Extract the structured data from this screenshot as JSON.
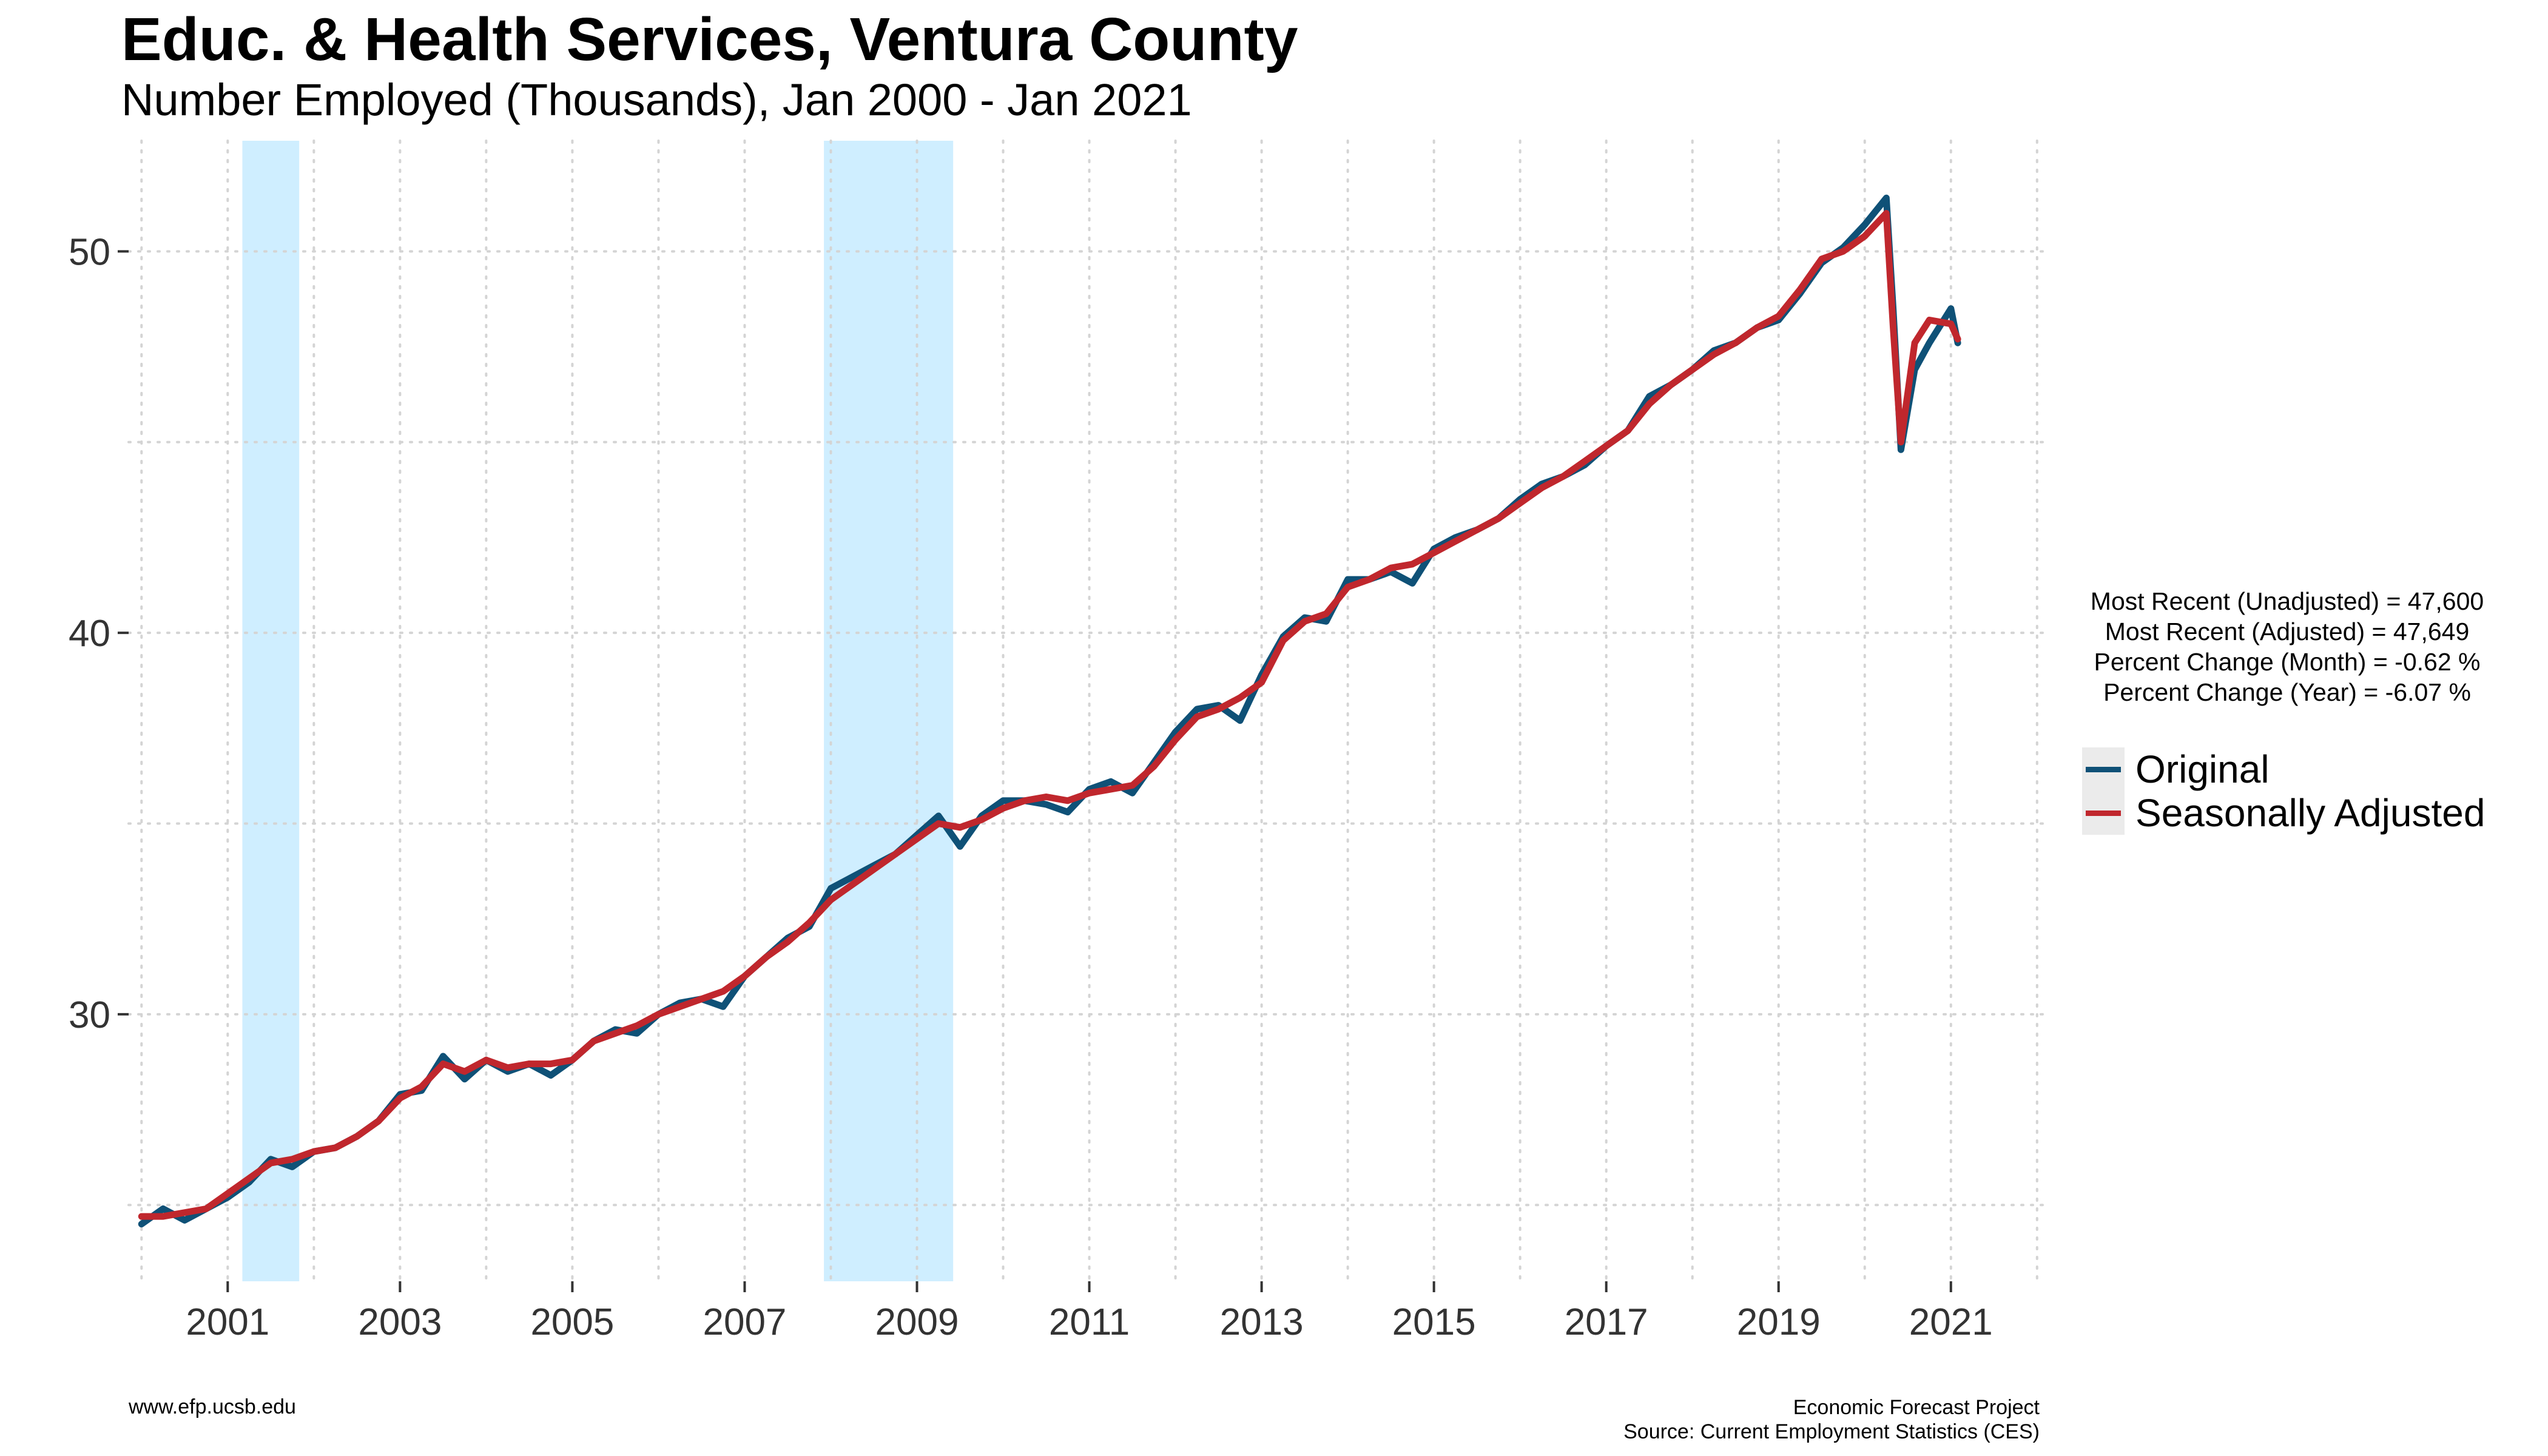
{
  "header": {
    "title": "Educ. & Health Services, Ventura County",
    "subtitle": "Number Employed (Thousands), Jan 2000 - Jan 2021"
  },
  "stats": {
    "unadjusted": "Most Recent (Unadjusted) = 47,600",
    "adjusted": "Most Recent (Adjusted) = 47,649",
    "month_change": "Percent Change (Month) = -0.62 %",
    "year_change": "Percent Change (Year) = -6.07 %"
  },
  "legend": {
    "original": "Original",
    "adjusted": "Seasonally Adjusted"
  },
  "footer": {
    "left": "www.efp.ucsb.edu",
    "right_line1": "Economic Forecast Project",
    "right_line2": "Source: Current Employment Statistics (CES)"
  },
  "chart_data": {
    "type": "line",
    "x_ticks": [
      2001,
      2003,
      2005,
      2007,
      2009,
      2011,
      2013,
      2015,
      2017,
      2019,
      2021
    ],
    "y_ticks": [
      30,
      40,
      50
    ],
    "xlim": [
      1999.85,
      2022.1
    ],
    "ylim": [
      23.0,
      52.9
    ],
    "grid": true,
    "legend_position": "right",
    "recessions": [
      [
        2001.17,
        2001.83
      ],
      [
        2007.92,
        2009.42
      ]
    ],
    "colors": {
      "original": "#0f5177",
      "adjusted": "#c0272d",
      "recession": "#cfeeff",
      "legend_key_bg": "#ebebeb"
    },
    "series": [
      {
        "name": "Original",
        "points": [
          [
            2000.0,
            24.5
          ],
          [
            2000.25,
            24.9
          ],
          [
            2000.5,
            24.6
          ],
          [
            2000.75,
            24.9
          ],
          [
            2001.0,
            25.2
          ],
          [
            2001.25,
            25.6
          ],
          [
            2001.5,
            26.2
          ],
          [
            2001.75,
            26.0
          ],
          [
            2002.0,
            26.4
          ],
          [
            2002.25,
            26.5
          ],
          [
            2002.5,
            26.8
          ],
          [
            2002.75,
            27.2
          ],
          [
            2003.0,
            27.9
          ],
          [
            2003.25,
            28.0
          ],
          [
            2003.5,
            28.9
          ],
          [
            2003.75,
            28.3
          ],
          [
            2004.0,
            28.8
          ],
          [
            2004.25,
            28.5
          ],
          [
            2004.5,
            28.7
          ],
          [
            2004.75,
            28.4
          ],
          [
            2005.0,
            28.8
          ],
          [
            2005.25,
            29.3
          ],
          [
            2005.5,
            29.6
          ],
          [
            2005.75,
            29.5
          ],
          [
            2006.0,
            30.0
          ],
          [
            2006.25,
            30.3
          ],
          [
            2006.5,
            30.4
          ],
          [
            2006.75,
            30.2
          ],
          [
            2007.0,
            31.0
          ],
          [
            2007.25,
            31.5
          ],
          [
            2007.5,
            32.0
          ],
          [
            2007.75,
            32.3
          ],
          [
            2008.0,
            33.3
          ],
          [
            2008.25,
            33.6
          ],
          [
            2008.5,
            33.9
          ],
          [
            2008.75,
            34.2
          ],
          [
            2009.0,
            34.7
          ],
          [
            2009.25,
            35.2
          ],
          [
            2009.5,
            34.4
          ],
          [
            2009.75,
            35.2
          ],
          [
            2010.0,
            35.6
          ],
          [
            2010.25,
            35.6
          ],
          [
            2010.5,
            35.5
          ],
          [
            2010.75,
            35.3
          ],
          [
            2011.0,
            35.9
          ],
          [
            2011.25,
            36.1
          ],
          [
            2011.5,
            35.8
          ],
          [
            2011.75,
            36.6
          ],
          [
            2012.0,
            37.4
          ],
          [
            2012.25,
            38.0
          ],
          [
            2012.5,
            38.1
          ],
          [
            2012.75,
            37.7
          ],
          [
            2013.0,
            38.9
          ],
          [
            2013.25,
            39.9
          ],
          [
            2013.5,
            40.4
          ],
          [
            2013.75,
            40.3
          ],
          [
            2014.0,
            41.4
          ],
          [
            2014.25,
            41.4
          ],
          [
            2014.5,
            41.6
          ],
          [
            2014.75,
            41.3
          ],
          [
            2015.0,
            42.2
          ],
          [
            2015.25,
            42.5
          ],
          [
            2015.5,
            42.7
          ],
          [
            2015.75,
            43.0
          ],
          [
            2016.0,
            43.5
          ],
          [
            2016.25,
            43.9
          ],
          [
            2016.5,
            44.1
          ],
          [
            2016.75,
            44.4
          ],
          [
            2017.0,
            44.9
          ],
          [
            2017.25,
            45.3
          ],
          [
            2017.5,
            46.2
          ],
          [
            2017.75,
            46.5
          ],
          [
            2018.0,
            46.9
          ],
          [
            2018.25,
            47.4
          ],
          [
            2018.5,
            47.6
          ],
          [
            2018.75,
            48.0
          ],
          [
            2019.0,
            48.2
          ],
          [
            2019.25,
            48.9
          ],
          [
            2019.5,
            49.7
          ],
          [
            2019.75,
            50.1
          ],
          [
            2020.0,
            50.7
          ],
          [
            2020.25,
            51.4
          ],
          [
            2020.33,
            48.5
          ],
          [
            2020.42,
            44.8
          ],
          [
            2020.58,
            46.9
          ],
          [
            2020.75,
            47.6
          ],
          [
            2021.0,
            48.5
          ],
          [
            2021.08,
            47.6
          ]
        ]
      },
      {
        "name": "Seasonally Adjusted",
        "points": [
          [
            2000.0,
            24.7
          ],
          [
            2000.25,
            24.7
          ],
          [
            2000.5,
            24.8
          ],
          [
            2000.75,
            24.9
          ],
          [
            2001.0,
            25.3
          ],
          [
            2001.25,
            25.7
          ],
          [
            2001.5,
            26.1
          ],
          [
            2001.75,
            26.2
          ],
          [
            2002.0,
            26.4
          ],
          [
            2002.25,
            26.5
          ],
          [
            2002.5,
            26.8
          ],
          [
            2002.75,
            27.2
          ],
          [
            2003.0,
            27.8
          ],
          [
            2003.25,
            28.1
          ],
          [
            2003.5,
            28.7
          ],
          [
            2003.75,
            28.5
          ],
          [
            2004.0,
            28.8
          ],
          [
            2004.25,
            28.6
          ],
          [
            2004.5,
            28.7
          ],
          [
            2004.75,
            28.7
          ],
          [
            2005.0,
            28.8
          ],
          [
            2005.25,
            29.3
          ],
          [
            2005.5,
            29.5
          ],
          [
            2005.75,
            29.7
          ],
          [
            2006.0,
            30.0
          ],
          [
            2006.25,
            30.2
          ],
          [
            2006.5,
            30.4
          ],
          [
            2006.75,
            30.6
          ],
          [
            2007.0,
            31.0
          ],
          [
            2007.25,
            31.5
          ],
          [
            2007.5,
            31.9
          ],
          [
            2007.75,
            32.4
          ],
          [
            2008.0,
            33.0
          ],
          [
            2008.25,
            33.4
          ],
          [
            2008.5,
            33.8
          ],
          [
            2008.75,
            34.2
          ],
          [
            2009.0,
            34.6
          ],
          [
            2009.25,
            35.0
          ],
          [
            2009.5,
            34.9
          ],
          [
            2009.75,
            35.1
          ],
          [
            2010.0,
            35.4
          ],
          [
            2010.25,
            35.6
          ],
          [
            2010.5,
            35.7
          ],
          [
            2010.75,
            35.6
          ],
          [
            2011.0,
            35.8
          ],
          [
            2011.25,
            35.9
          ],
          [
            2011.5,
            36.0
          ],
          [
            2011.75,
            36.5
          ],
          [
            2012.0,
            37.2
          ],
          [
            2012.25,
            37.8
          ],
          [
            2012.5,
            38.0
          ],
          [
            2012.75,
            38.3
          ],
          [
            2013.0,
            38.7
          ],
          [
            2013.25,
            39.8
          ],
          [
            2013.5,
            40.3
          ],
          [
            2013.75,
            40.5
          ],
          [
            2014.0,
            41.2
          ],
          [
            2014.25,
            41.4
          ],
          [
            2014.5,
            41.7
          ],
          [
            2014.75,
            41.8
          ],
          [
            2015.0,
            42.1
          ],
          [
            2015.25,
            42.4
          ],
          [
            2015.5,
            42.7
          ],
          [
            2015.75,
            43.0
          ],
          [
            2016.0,
            43.4
          ],
          [
            2016.25,
            43.8
          ],
          [
            2016.5,
            44.1
          ],
          [
            2016.75,
            44.5
          ],
          [
            2017.0,
            44.9
          ],
          [
            2017.25,
            45.3
          ],
          [
            2017.5,
            46.0
          ],
          [
            2017.75,
            46.5
          ],
          [
            2018.0,
            46.9
          ],
          [
            2018.25,
            47.3
          ],
          [
            2018.5,
            47.6
          ],
          [
            2018.75,
            48.0
          ],
          [
            2019.0,
            48.3
          ],
          [
            2019.25,
            49.0
          ],
          [
            2019.5,
            49.8
          ],
          [
            2019.75,
            50.0
          ],
          [
            2020.0,
            50.4
          ],
          [
            2020.25,
            51.0
          ],
          [
            2020.33,
            48.0
          ],
          [
            2020.42,
            45.0
          ],
          [
            2020.58,
            47.6
          ],
          [
            2020.75,
            48.2
          ],
          [
            2021.0,
            48.1
          ],
          [
            2021.08,
            47.7
          ]
        ]
      }
    ]
  }
}
